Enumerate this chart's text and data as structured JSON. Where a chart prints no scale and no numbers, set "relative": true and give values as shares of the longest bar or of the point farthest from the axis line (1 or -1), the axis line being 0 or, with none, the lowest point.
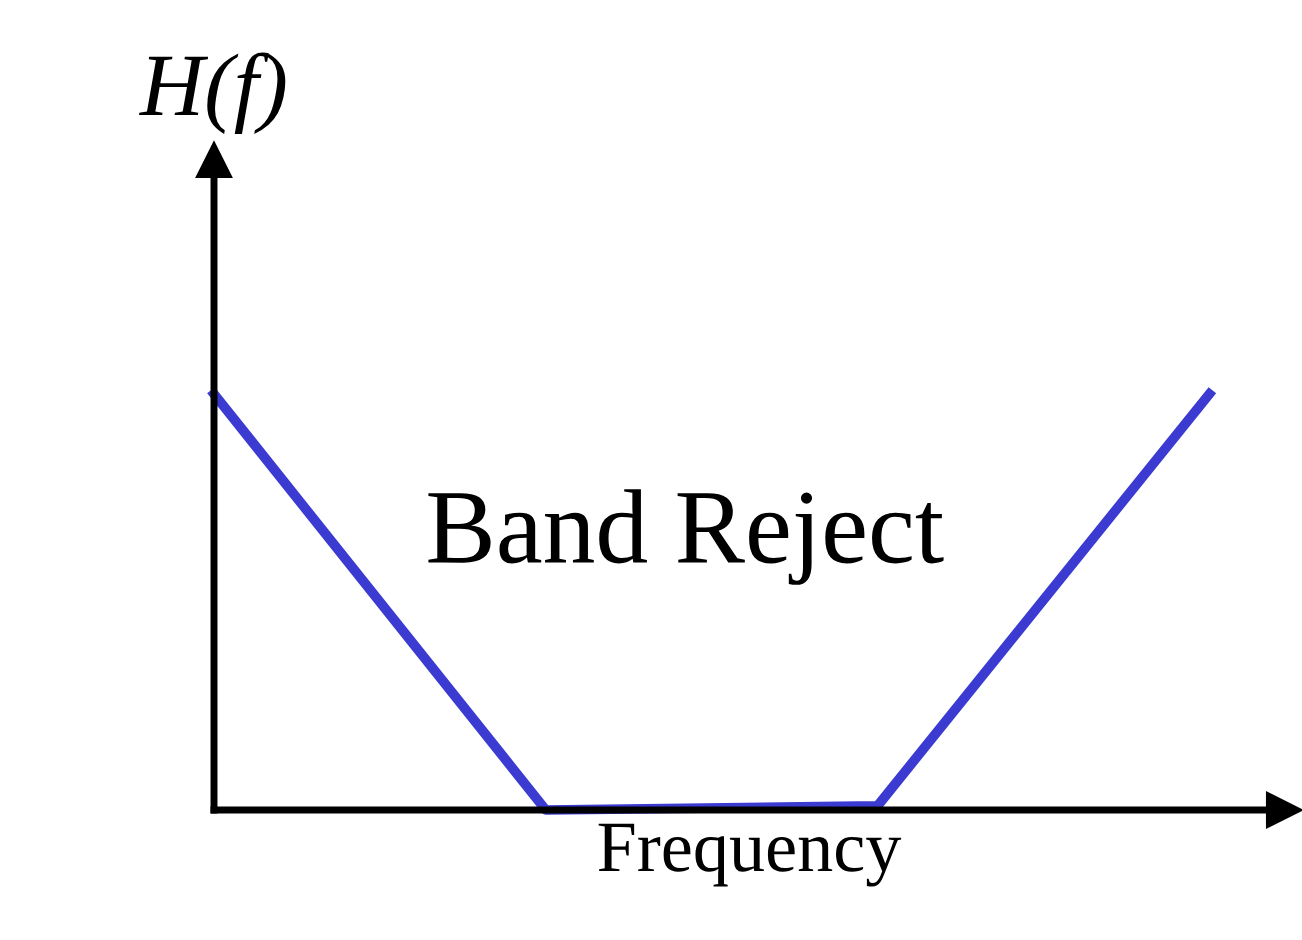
{
  "chart_data": {
    "type": "line",
    "relative": true,
    "ylabel": "H(f)",
    "xlabel": "Frequency",
    "categories": [
      null,
      null,
      null,
      null
    ],
    "series": [
      {
        "color": "#3b3bd1",
        "values": [
          1,
          0,
          0.01,
          1
        ]
      }
    ],
    "annotations": [
      "Band Reject"
    ],
    "tick_labels": false,
    "legend": false,
    "marker": "none",
    "line_style": "solid"
  }
}
